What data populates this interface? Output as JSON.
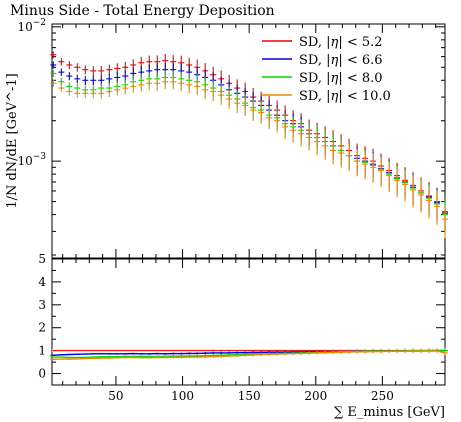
{
  "chart_data": {
    "type": "scatter",
    "title": "Minus Side - Total Energy Deposition",
    "xlabel": "∑ E_minus [GeV]",
    "ylabel": "1/N dN/dE [GeV^-1]",
    "xlim": [
      2,
      297
    ],
    "ylim": [
      0.00019,
      0.0105
    ],
    "yscale": "log",
    "grid": false,
    "legend_position": "top-right",
    "x_ticks": [
      "50",
      "100",
      "150",
      "200",
      "250"
    ],
    "y_ticks": {
      "major_1e-2": "10",
      "major_1e-3": "10"
    },
    "y_tick_exponents": {
      "major_1e-2": "−2",
      "major_1e-3": "−3"
    },
    "ratio_ylim": [
      -0.5,
      5
    ],
    "ratio_ticks": [
      "0",
      "1",
      "2",
      "3",
      "4",
      "5"
    ],
    "series": [
      {
        "name": "SD, |η| < 5.2",
        "label_prefix": "SD, |",
        "label_var": "η",
        "label_suffix": "| < 5.2",
        "color": "#ee0000",
        "x": [
          3,
          9,
          15,
          21,
          27,
          33,
          39,
          45,
          51,
          57,
          63,
          69,
          75,
          81,
          87,
          93,
          99,
          105,
          111,
          117,
          123,
          129,
          135,
          141,
          147,
          153,
          159,
          165,
          171,
          177,
          183,
          189,
          195,
          201,
          207,
          213,
          219,
          225,
          231,
          237,
          243,
          249,
          255,
          261,
          267,
          273,
          279,
          285,
          291,
          297
        ],
        "y": [
          0.0062,
          0.0055,
          0.0052,
          0.005,
          0.0048,
          0.0047,
          0.0047,
          0.0048,
          0.0049,
          0.005,
          0.0052,
          0.0054,
          0.0055,
          0.0055,
          0.0056,
          0.0055,
          0.0054,
          0.0052,
          0.005,
          0.0047,
          0.0044,
          0.0041,
          0.0038,
          0.0035,
          0.0033,
          0.003,
          0.0028,
          0.0026,
          0.0024,
          0.0022,
          0.002,
          0.0019,
          0.0017,
          0.0016,
          0.0015,
          0.0014,
          0.0013,
          0.0012,
          0.0011,
          0.00105,
          0.001,
          0.00092,
          0.00085,
          0.00078,
          0.00072,
          0.00066,
          0.0006,
          0.00055,
          0.0005,
          0.00042
        ]
      },
      {
        "name": "SD, |η| < 6.6",
        "label_prefix": "SD, |",
        "label_var": "η",
        "label_suffix": "| < 6.6",
        "color": "#0000dd",
        "x": [
          3,
          9,
          15,
          21,
          27,
          33,
          39,
          45,
          51,
          57,
          63,
          69,
          75,
          81,
          87,
          93,
          99,
          105,
          111,
          117,
          123,
          129,
          135,
          141,
          147,
          153,
          159,
          165,
          171,
          177,
          183,
          189,
          195,
          201,
          207,
          213,
          219,
          225,
          231,
          237,
          243,
          249,
          255,
          261,
          267,
          273,
          279,
          285,
          291,
          297
        ],
        "y": [
          0.0052,
          0.0046,
          0.0043,
          0.0041,
          0.004,
          0.004,
          0.004,
          0.0041,
          0.0042,
          0.0043,
          0.0045,
          0.0046,
          0.0047,
          0.0048,
          0.0048,
          0.0048,
          0.0047,
          0.0046,
          0.0044,
          0.0042,
          0.004,
          0.0037,
          0.0034,
          0.0032,
          0.003,
          0.0028,
          0.0026,
          0.0024,
          0.0022,
          0.002,
          0.0019,
          0.0018,
          0.0016,
          0.0015,
          0.0014,
          0.0013,
          0.0012,
          0.0011,
          0.00105,
          0.001,
          0.00095,
          0.00088,
          0.00082,
          0.00075,
          0.0007,
          0.00064,
          0.00058,
          0.00054,
          0.00049,
          0.00041
        ]
      },
      {
        "name": "SD, |η| < 8.0",
        "label_prefix": "SD, |",
        "label_var": "η",
        "label_suffix": "| < 8.0",
        "color": "#00dd00",
        "x": [
          3,
          9,
          15,
          21,
          27,
          33,
          39,
          45,
          51,
          57,
          63,
          69,
          75,
          81,
          87,
          93,
          99,
          105,
          111,
          117,
          123,
          129,
          135,
          141,
          147,
          153,
          159,
          165,
          171,
          177,
          183,
          189,
          195,
          201,
          207,
          213,
          219,
          225,
          231,
          237,
          243,
          249,
          255,
          261,
          267,
          273,
          279,
          285,
          291,
          297
        ],
        "y": [
          0.0045,
          0.0039,
          0.0036,
          0.0035,
          0.0034,
          0.0034,
          0.0035,
          0.0035,
          0.0036,
          0.0037,
          0.0039,
          0.004,
          0.0041,
          0.0041,
          0.0042,
          0.0042,
          0.0041,
          0.004,
          0.0039,
          0.0037,
          0.0035,
          0.0033,
          0.0031,
          0.0029,
          0.0027,
          0.0025,
          0.0024,
          0.0022,
          0.0021,
          0.0019,
          0.0018,
          0.0017,
          0.0016,
          0.0015,
          0.0014,
          0.0013,
          0.0012,
          0.0011,
          0.001,
          0.00098,
          0.00093,
          0.00087,
          0.0008,
          0.00074,
          0.00069,
          0.00063,
          0.00058,
          0.00053,
          0.00048,
          0.0004
        ]
      },
      {
        "name": "SD, |η| < 10.0",
        "label_prefix": "SD, |",
        "label_var": "η",
        "label_suffix": "| < 10.0",
        "color": "#ee8800",
        "x": [
          3,
          9,
          15,
          21,
          27,
          33,
          39,
          45,
          51,
          57,
          63,
          69,
          75,
          81,
          87,
          93,
          99,
          105,
          111,
          117,
          123,
          129,
          135,
          141,
          147,
          153,
          159,
          165,
          171,
          177,
          183,
          189,
          195,
          201,
          207,
          213,
          219,
          225,
          231,
          237,
          243,
          249,
          255,
          261,
          267,
          273,
          279,
          285,
          291,
          297
        ],
        "y": [
          0.0038,
          0.0035,
          0.0033,
          0.0032,
          0.0032,
          0.0032,
          0.0032,
          0.0033,
          0.0034,
          0.0035,
          0.0036,
          0.0037,
          0.0038,
          0.0038,
          0.0039,
          0.0039,
          0.0038,
          0.0037,
          0.0036,
          0.0034,
          0.0033,
          0.0031,
          0.0029,
          0.0027,
          0.0026,
          0.0024,
          0.0023,
          0.0021,
          0.002,
          0.0018,
          0.0017,
          0.0016,
          0.0015,
          0.0014,
          0.0013,
          0.0012,
          0.00115,
          0.0011,
          0.001,
          0.00095,
          0.0009,
          0.00085,
          0.00078,
          0.00072,
          0.00067,
          0.00061,
          0.00056,
          0.00051,
          0.00046,
          0.00037
        ]
      }
    ],
    "ratio_series": [
      {
        "name": "SD, |η| < 5.2",
        "color": "#ee0000",
        "values": [
          1.0
        ]
      },
      {
        "name": "SD, |η| < 6.6",
        "color": "#0000dd",
        "values": [
          0.8,
          0.82,
          0.83,
          0.84,
          0.85,
          0.86,
          0.86,
          0.86,
          0.86,
          0.86,
          0.87,
          0.86,
          0.86,
          0.87,
          0.86,
          0.87,
          0.87,
          0.88,
          0.88,
          0.89,
          0.9,
          0.9,
          0.9,
          0.91,
          0.91,
          0.92,
          0.92,
          0.93,
          0.93,
          0.93,
          0.94,
          0.94,
          0.95,
          0.95,
          0.95,
          0.96,
          0.96,
          0.96,
          0.97,
          0.97,
          0.98,
          0.98,
          0.98,
          0.98,
          0.99,
          0.99,
          0.99,
          1.0,
          1.0,
          1.0
        ]
      },
      {
        "name": "SD, |η| < 8.0",
        "color": "#00dd00",
        "values": [
          0.72,
          0.72,
          0.7,
          0.7,
          0.71,
          0.72,
          0.73,
          0.74,
          0.74,
          0.75,
          0.75,
          0.75,
          0.75,
          0.75,
          0.75,
          0.76,
          0.76,
          0.77,
          0.77,
          0.78,
          0.79,
          0.8,
          0.81,
          0.82,
          0.83,
          0.84,
          0.85,
          0.86,
          0.87,
          0.88,
          0.89,
          0.9,
          0.91,
          0.92,
          0.93,
          0.94,
          0.95,
          0.96,
          0.96,
          0.97,
          0.98,
          0.98,
          0.98,
          0.99,
          0.99,
          1.0,
          1.0,
          1.0,
          1.0,
          1.0
        ]
      },
      {
        "name": "SD, |η| < 10.0",
        "color": "#ee8800",
        "values": [
          0.62,
          0.63,
          0.63,
          0.64,
          0.66,
          0.67,
          0.68,
          0.68,
          0.69,
          0.7,
          0.7,
          0.69,
          0.69,
          0.7,
          0.7,
          0.71,
          0.71,
          0.72,
          0.72,
          0.73,
          0.74,
          0.75,
          0.77,
          0.78,
          0.8,
          0.81,
          0.83,
          0.84,
          0.85,
          0.86,
          0.87,
          0.88,
          0.89,
          0.9,
          0.91,
          0.92,
          0.93,
          0.94,
          0.95,
          0.95,
          0.96,
          0.96,
          0.97,
          0.97,
          0.98,
          0.98,
          0.98,
          0.98,
          0.99,
          0.9
        ]
      }
    ]
  }
}
